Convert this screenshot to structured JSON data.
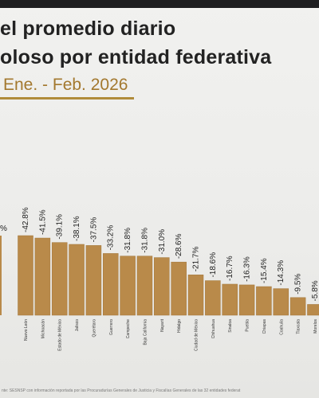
{
  "header": {
    "title_line1": "el promedio diario",
    "title_line2": "oloso por entidad federativa",
    "subtitle": "Ene. - Feb. 2026"
  },
  "colors": {
    "bar": "#b98a4a",
    "bar_stroke": "#a2763a",
    "accent": "#a3782e"
  },
  "footer": {
    "source": "nte: SESNSP con información reportada por las Procuradurías Generales de Justicia y Fiscalías Generales de las 32 entidades federat"
  },
  "chart_data": {
    "type": "bar",
    "categories": [
      "Nuevo León",
      "Michoacán",
      "Estado de México",
      "Jalisco",
      "Querétaro",
      "Guerrero",
      "Campeche",
      "Baja California",
      "Nayarit",
      "Hidalgo",
      "Ciudad de México",
      "Chihuahua",
      "Sinaloa",
      "Puebla",
      "Chiapas",
      "Coahuila",
      "Tlaxcala",
      "Morelos"
    ],
    "values": [
      -42.8,
      -41.5,
      -39.1,
      -38.1,
      -37.5,
      -33.2,
      -31.8,
      -31.8,
      -31.0,
      -28.6,
      -21.7,
      -18.6,
      -16.7,
      -16.3,
      -15.4,
      -14.3,
      -9.5,
      -5.8
    ],
    "data_labels": [
      "-42.8%",
      "-41.5%",
      "-39.1%",
      "-38.1%",
      "-37.5%",
      "-33.2%",
      "-31.8%",
      "-31.8%",
      "-31.0%",
      "-28.6%",
      "-21.7%",
      "-18.6%",
      "-16.7%",
      "-16.3%",
      "-15.4%",
      "-14.3%",
      "-9.5%",
      "-5.8%"
    ],
    "partial_bar_label": "%",
    "partial_bar_value": -42.8,
    "grid": false,
    "legend": "none"
  }
}
